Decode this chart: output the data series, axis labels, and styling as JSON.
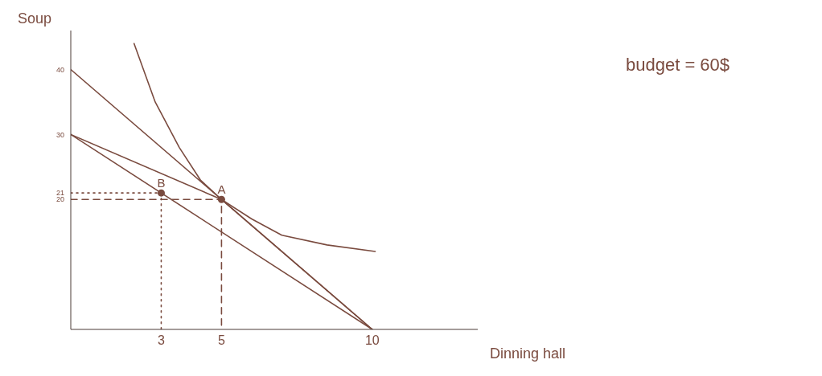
{
  "chart_data": {
    "type": "line",
    "xlabel": "Dinning hall",
    "ylabel": "Soup",
    "xlim": [
      0,
      13.5
    ],
    "ylim": [
      0,
      46
    ],
    "xticks": [
      3,
      5,
      10
    ],
    "yticks": [
      20,
      21,
      30,
      40
    ],
    "grid": false,
    "marker": "none",
    "series": [
      {
        "color": "#7a4b3f",
        "x": [
          0,
          10
        ],
        "values": [
          40,
          0
        ],
        "line_style": "solid"
      },
      {
        "color": "#7a4b3f",
        "x": [
          0,
          10
        ],
        "values": [
          30,
          0
        ],
        "line_style": "solid"
      },
      {
        "color": "#7a4b3f",
        "x": [
          0,
          5,
          10
        ],
        "values": [
          30,
          20,
          0
        ],
        "line_style": "solid"
      },
      {
        "color": "#7a4b3f",
        "x": [
          2.1,
          2.8,
          3.6,
          4.3,
          5,
          6,
          7,
          8.5,
          10.1
        ],
        "values": [
          44,
          35,
          28,
          23,
          20,
          17,
          14.5,
          13,
          12
        ],
        "line_style": "solid"
      },
      {
        "color": "#7a4b3f",
        "x": [
          0,
          5,
          5
        ],
        "values": [
          20,
          20,
          0
        ],
        "line_style": "dashed"
      },
      {
        "color": "#7a4b3f",
        "x": [
          0,
          3,
          3
        ],
        "values": [
          21,
          21,
          0
        ],
        "line_style": "dotted"
      },
      {
        "type": "scatter",
        "color": "#7a4b3f",
        "x": [
          3,
          5
        ],
        "values": [
          21,
          20
        ],
        "marker": "circle"
      }
    ],
    "annotations": [
      {
        "text": "A",
        "x": 5,
        "y": 20
      },
      {
        "text": "B",
        "x": 3,
        "y": 21
      },
      "budget = 60$"
    ]
  }
}
